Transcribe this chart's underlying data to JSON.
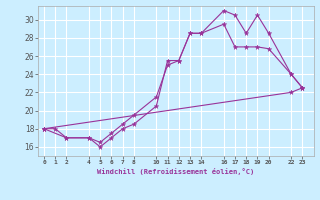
{
  "xlabel": "Windchill (Refroidissement éolien,°C)",
  "background_color": "#cceeff",
  "grid_color": "#ffffff",
  "line_color": "#993399",
  "xlim": [
    -0.5,
    24.0
  ],
  "ylim": [
    15.0,
    31.5
  ],
  "xticks": [
    0,
    1,
    2,
    4,
    5,
    6,
    7,
    8,
    10,
    11,
    12,
    13,
    14,
    16,
    17,
    18,
    19,
    20,
    22,
    23
  ],
  "yticks": [
    16,
    18,
    20,
    22,
    24,
    26,
    28,
    30
  ],
  "series": [
    {
      "x": [
        0,
        1,
        2,
        4,
        5,
        6,
        7,
        8,
        10,
        11,
        12,
        13,
        14,
        16,
        17,
        18,
        19,
        20,
        22,
        23
      ],
      "y": [
        18,
        18,
        17,
        17,
        16,
        17,
        18,
        18.5,
        20.5,
        25.5,
        25.5,
        28.5,
        28.5,
        31.0,
        30.5,
        28.5,
        30.5,
        28.5,
        24,
        22.5
      ]
    },
    {
      "x": [
        0,
        22,
        23
      ],
      "y": [
        18,
        22,
        22.5
      ]
    },
    {
      "x": [
        0,
        2,
        4,
        5,
        6,
        7,
        8,
        10,
        11,
        12,
        13,
        14,
        16,
        17,
        18,
        19,
        20,
        22,
        23
      ],
      "y": [
        18,
        17,
        17,
        16.5,
        17.5,
        18.5,
        19.5,
        21.5,
        25.0,
        25.5,
        28.5,
        28.5,
        29.5,
        27.0,
        27.0,
        27.0,
        26.8,
        24,
        22.5
      ]
    }
  ]
}
